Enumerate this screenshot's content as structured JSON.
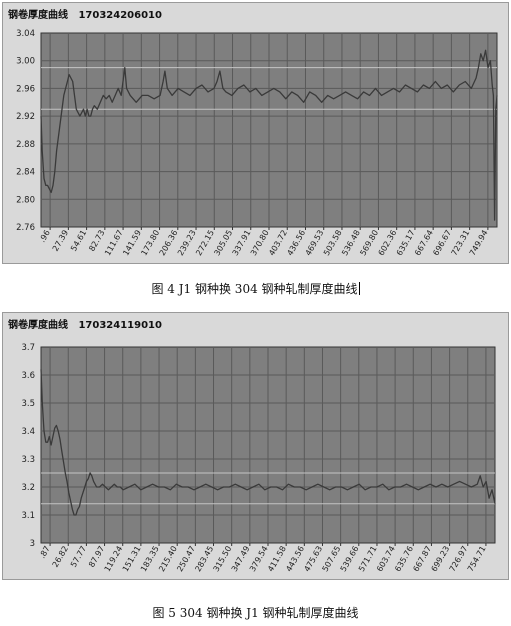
{
  "charts": [
    {
      "panel_title": "钢卷厚度曲线",
      "coil_id": "170324206010",
      "caption": "图 4   J1 钢种换 304 钢种轧制厚度曲线"
    },
    {
      "panel_title": "钢卷厚度曲线",
      "coil_id": "170324119010",
      "caption": "图 5   304 钢种换 J1 钢种轧制厚度曲线"
    }
  ],
  "colors": {
    "plot_bg": "#7f7f7f",
    "grid": "#5a5a5a",
    "line": "#3a3a3a",
    "ref_line": "#c4c4c4",
    "panel_bg": "#d9d9d9"
  },
  "chart_data": [
    {
      "type": "line",
      "ylim": [
        2.76,
        3.04
      ],
      "yticks": [
        "3.04",
        "3.00",
        "2.96",
        "2.92",
        "2.88",
        "2.84",
        "2.80",
        "2.76"
      ],
      "xticks": [
        ".96",
        "27.39",
        "54.61",
        "82.73",
        "111.67",
        "141.59",
        "173.80",
        "206.36",
        "239.23",
        "272.15",
        "305.05",
        "337.91",
        "370.80",
        "403.72",
        "436.56",
        "469.53",
        "503.58",
        "536.48",
        "569.80",
        "602.36",
        "635.17",
        "667.64",
        "696.67",
        "723.31",
        "749.94"
      ],
      "xlim": [
        0.96,
        763
      ],
      "reference_lines": [
        2.93,
        2.99
      ],
      "series": [
        {
          "x": [
            0.96,
            3,
            6,
            9,
            12,
            15,
            18,
            21,
            24,
            27,
            30,
            33,
            36,
            39,
            42,
            45,
            48,
            51,
            54,
            57,
            60,
            63,
            66,
            69,
            72,
            75,
            78,
            81,
            84,
            87,
            90,
            95,
            100,
            105,
            110,
            115,
            120,
            125,
            130,
            135,
            138,
            141,
            144,
            150,
            160,
            170,
            180,
            190,
            200,
            205,
            208,
            212,
            220,
            230,
            240,
            250,
            260,
            270,
            280,
            290,
            295,
            300,
            305,
            310,
            320,
            330,
            340,
            350,
            360,
            370,
            380,
            390,
            400,
            410,
            420,
            430,
            440,
            450,
            460,
            470,
            480,
            490,
            500,
            510,
            520,
            530,
            540,
            550,
            560,
            570,
            580,
            590,
            600,
            610,
            620,
            630,
            640,
            650,
            660,
            670,
            680,
            690,
            700,
            710,
            720,
            728,
            732,
            736,
            740,
            744,
            748,
            752,
            755,
            757,
            759,
            761,
            763
          ],
          "y": [
            2.92,
            2.87,
            2.83,
            2.82,
            2.82,
            2.815,
            2.81,
            2.82,
            2.84,
            2.87,
            2.89,
            2.91,
            2.93,
            2.95,
            2.96,
            2.97,
            2.98,
            2.975,
            2.97,
            2.95,
            2.93,
            2.925,
            2.92,
            2.925,
            2.93,
            2.92,
            2.93,
            2.92,
            2.92,
            2.93,
            2.935,
            2.93,
            2.94,
            2.95,
            2.945,
            2.95,
            2.94,
            2.95,
            2.96,
            2.95,
            2.97,
            2.99,
            2.96,
            2.95,
            2.94,
            2.95,
            2.95,
            2.945,
            2.95,
            2.97,
            2.985,
            2.96,
            2.95,
            2.96,
            2.955,
            2.95,
            2.96,
            2.965,
            2.955,
            2.96,
            2.97,
            2.985,
            2.96,
            2.955,
            2.95,
            2.96,
            2.965,
            2.955,
            2.96,
            2.95,
            2.955,
            2.96,
            2.955,
            2.945,
            2.955,
            2.95,
            2.94,
            2.955,
            2.95,
            2.94,
            2.95,
            2.945,
            2.95,
            2.955,
            2.95,
            2.945,
            2.955,
            2.95,
            2.96,
            2.95,
            2.955,
            2.96,
            2.955,
            2.965,
            2.96,
            2.955,
            2.965,
            2.96,
            2.97,
            2.96,
            2.965,
            2.955,
            2.965,
            2.97,
            2.96,
            2.975,
            2.99,
            3.01,
            3.0,
            3.015,
            2.99,
            3.0,
            2.965,
            2.95,
            2.77,
            2.93,
            2.95
          ]
        }
      ]
    },
    {
      "type": "line",
      "ylim": [
        3.0,
        3.7
      ],
      "yticks": [
        "3.7",
        "3.6",
        "3.5",
        "3.4",
        "3.3",
        "3.2",
        "3.1",
        "3"
      ],
      "xticks": [
        ".87",
        "26.82",
        "57.77",
        "87.97",
        "119.24",
        "151.31",
        "183.35",
        "215.40",
        "250.47",
        "283.45",
        "315.50",
        "347.49",
        "379.54",
        "411.58",
        "443.56",
        "475.63",
        "507.65",
        "539.66",
        "571.71",
        "603.74",
        "635.76",
        "667.87",
        "699.23",
        "726.97",
        "754.71"
      ],
      "xlim": [
        0.87,
        770
      ],
      "reference_lines": [
        3.14,
        3.25
      ],
      "series": [
        {
          "x": [
            0.87,
            3,
            6,
            9,
            12,
            15,
            18,
            21,
            24,
            27,
            30,
            33,
            36,
            39,
            42,
            45,
            48,
            51,
            54,
            57,
            60,
            63,
            66,
            69,
            72,
            75,
            78,
            81,
            84,
            87,
            90,
            95,
            100,
            105,
            110,
            115,
            120,
            125,
            130,
            135,
            140,
            150,
            160,
            170,
            180,
            190,
            200,
            210,
            220,
            230,
            240,
            250,
            260,
            270,
            280,
            290,
            300,
            310,
            320,
            330,
            340,
            350,
            360,
            370,
            380,
            390,
            400,
            410,
            420,
            430,
            440,
            450,
            460,
            470,
            480,
            490,
            500,
            510,
            520,
            530,
            540,
            550,
            560,
            570,
            580,
            590,
            600,
            610,
            620,
            630,
            640,
            650,
            660,
            670,
            680,
            690,
            700,
            710,
            720,
            730,
            740,
            745,
            750,
            755,
            760,
            765,
            770
          ],
          "y": [
            3.62,
            3.5,
            3.4,
            3.36,
            3.36,
            3.38,
            3.35,
            3.38,
            3.41,
            3.42,
            3.4,
            3.37,
            3.33,
            3.29,
            3.25,
            3.22,
            3.18,
            3.15,
            3.12,
            3.1,
            3.1,
            3.12,
            3.13,
            3.16,
            3.18,
            3.2,
            3.22,
            3.23,
            3.25,
            3.24,
            3.22,
            3.2,
            3.2,
            3.21,
            3.2,
            3.19,
            3.2,
            3.21,
            3.2,
            3.2,
            3.19,
            3.2,
            3.21,
            3.19,
            3.2,
            3.21,
            3.2,
            3.2,
            3.19,
            3.21,
            3.2,
            3.2,
            3.19,
            3.2,
            3.21,
            3.2,
            3.19,
            3.2,
            3.2,
            3.21,
            3.2,
            3.19,
            3.2,
            3.21,
            3.19,
            3.2,
            3.2,
            3.19,
            3.21,
            3.2,
            3.2,
            3.19,
            3.2,
            3.21,
            3.2,
            3.19,
            3.2,
            3.2,
            3.19,
            3.2,
            3.21,
            3.19,
            3.2,
            3.2,
            3.21,
            3.19,
            3.2,
            3.2,
            3.21,
            3.2,
            3.19,
            3.2,
            3.21,
            3.2,
            3.21,
            3.2,
            3.21,
            3.22,
            3.21,
            3.2,
            3.21,
            3.24,
            3.2,
            3.22,
            3.16,
            3.19,
            3.14
          ]
        }
      ]
    }
  ]
}
